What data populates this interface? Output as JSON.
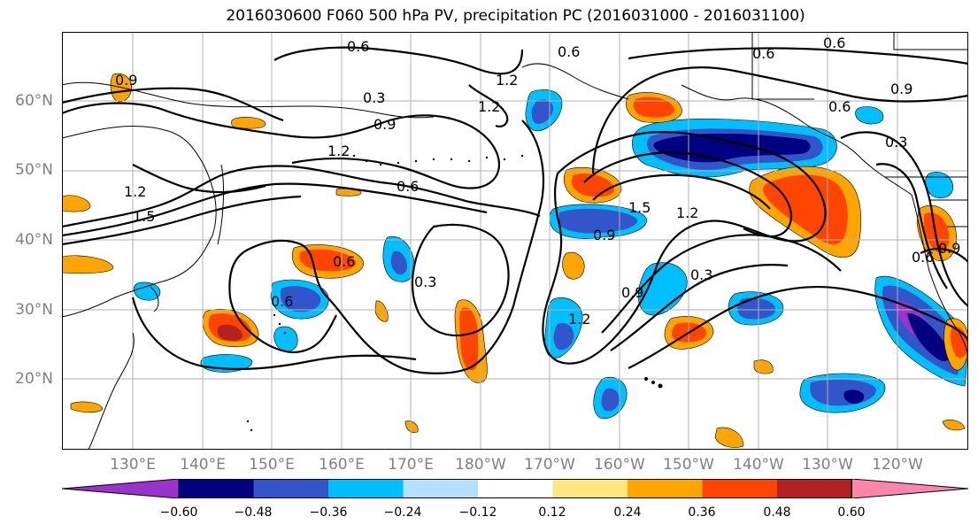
{
  "title": "2016030600 F060 500 hPa PV, precipitation PC (2016031000 - 2016031100)",
  "lat_labels": [
    "60°N",
    "50°N",
    "40°N",
    "30°N",
    "20°N"
  ],
  "lon_labels": [
    "130°E",
    "140°E",
    "150°E",
    "160°E",
    "170°E",
    "180°W",
    "170°W",
    "160°W",
    "150°W",
    "140°W",
    "130°W",
    "120°W"
  ],
  "contour_labels": [
    "0.6",
    "0.6",
    "0.9",
    "1.2",
    "0.3",
    "0.9",
    "1.2",
    "1.5",
    "0.6",
    "0.6",
    "0.6",
    "0.3",
    "0.9",
    "1.2",
    "1.5",
    "0.9",
    "1.2",
    "0.3",
    "0.9",
    "1.2",
    "0.6",
    "1.2",
    "0.6",
    "0.9",
    "0.6",
    "0.6",
    "0.3"
  ],
  "colorbar": {
    "colors": [
      "#9933cc",
      "#000080",
      "#3355cc",
      "#00bfff",
      "#b3e0ff",
      "#ffffff",
      "#ffe680",
      "#ffa500",
      "#ff4500",
      "#b22222",
      "#ff85ad"
    ],
    "tick_labels": [
      "−0.60",
      "−0.48",
      "−0.36",
      "−0.24",
      "−0.12",
      "0.12",
      "0.24",
      "0.36",
      "0.48",
      "0.60"
    ]
  }
}
